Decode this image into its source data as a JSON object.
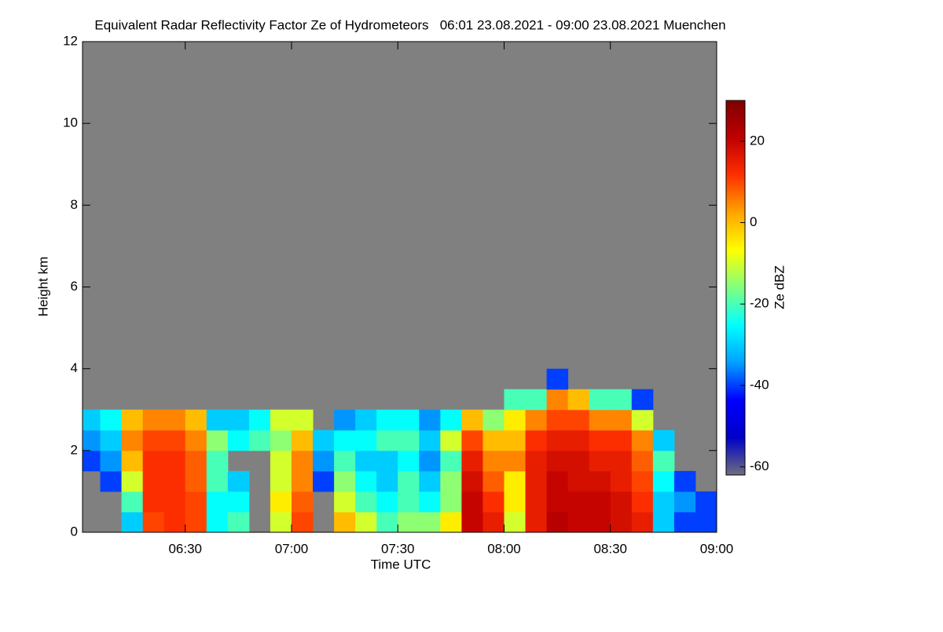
{
  "chart_data": {
    "type": "heatmap",
    "title": "Equivalent Radar Reflectivity Factor Ze of Hydrometeors   06:01 23.08.2021 - 09:00 23.08.2021 Muenchen",
    "x_label": "Time UTC",
    "y_label": "Height km",
    "colorbar_label": "Ze dBZ",
    "xlim": [
      361,
      540
    ],
    "xticks": [
      {
        "value": 390,
        "label": "06:30"
      },
      {
        "value": 420,
        "label": "07:00"
      },
      {
        "value": 450,
        "label": "07:30"
      },
      {
        "value": 480,
        "label": "08:00"
      },
      {
        "value": 510,
        "label": "08:30"
      },
      {
        "value": 540,
        "label": "09:00"
      }
    ],
    "ylim": [
      0,
      12
    ],
    "yticks": [
      0,
      2,
      4,
      6,
      8,
      10,
      12
    ],
    "clim": [
      -62,
      30
    ],
    "cticks": [
      -60,
      -40,
      -20,
      0,
      20
    ],
    "background": "#808080",
    "colormap": [
      "#6e6e80",
      "#0000c8",
      "#0000ff",
      "#00a0ff",
      "#00ffff",
      "#80ff80",
      "#ffff00",
      "#ffa500",
      "#ff3000",
      "#c00000",
      "#7f0000"
    ],
    "x": [
      363,
      369,
      375,
      381,
      387,
      393,
      399,
      405,
      411,
      417,
      423,
      429,
      435,
      441,
      447,
      453,
      459,
      465,
      471,
      477,
      483,
      489,
      495,
      501,
      507,
      513,
      519,
      525,
      531,
      537
    ],
    "y": [
      0.25,
      0.75,
      1.25,
      1.75,
      2.25,
      2.75,
      3.25,
      3.75
    ],
    "z": [
      [
        null,
        null,
        -30,
        10,
        12,
        10,
        -25,
        -20,
        null,
        -10,
        10,
        null,
        0,
        -10,
        -20,
        -15,
        -15,
        -5,
        20,
        15,
        -10,
        15,
        22,
        20,
        20,
        18,
        15,
        -30,
        -40,
        -40
      ],
      [
        null,
        null,
        -20,
        12,
        12,
        10,
        -25,
        -25,
        null,
        -5,
        8,
        null,
        -10,
        -20,
        -25,
        -20,
        -25,
        -15,
        20,
        12,
        -5,
        15,
        20,
        20,
        20,
        18,
        12,
        -30,
        -35,
        -40
      ],
      [
        null,
        -40,
        -10,
        12,
        12,
        8,
        -20,
        -30,
        null,
        -10,
        5,
        -40,
        -15,
        -25,
        -30,
        -20,
        -30,
        -15,
        18,
        8,
        -5,
        15,
        20,
        18,
        18,
        15,
        10,
        -25,
        -40,
        null
      ],
      [
        -40,
        -35,
        0,
        12,
        12,
        8,
        -20,
        null,
        null,
        -10,
        5,
        -35,
        -20,
        -30,
        -30,
        -25,
        -35,
        -20,
        15,
        5,
        5,
        15,
        18,
        18,
        15,
        15,
        8,
        -20,
        null,
        null
      ],
      [
        -35,
        -30,
        5,
        10,
        10,
        5,
        -15,
        -25,
        -20,
        -15,
        0,
        -30,
        -25,
        -25,
        -20,
        -20,
        -30,
        -10,
        10,
        0,
        0,
        12,
        15,
        15,
        12,
        12,
        5,
        -30,
        null,
        null
      ],
      [
        -30,
        -25,
        0,
        5,
        5,
        0,
        -30,
        -30,
        -25,
        -10,
        -10,
        null,
        -35,
        -30,
        -25,
        -25,
        -35,
        -25,
        0,
        -15,
        -5,
        5,
        10,
        10,
        5,
        5,
        -10,
        null,
        null,
        null
      ],
      [
        null,
        null,
        null,
        null,
        null,
        null,
        null,
        null,
        null,
        null,
        null,
        null,
        null,
        null,
        null,
        null,
        null,
        null,
        null,
        null,
        -20,
        -20,
        5,
        0,
        -20,
        -20,
        -40,
        null,
        null,
        null
      ],
      [
        null,
        null,
        null,
        null,
        null,
        null,
        null,
        null,
        null,
        null,
        null,
        null,
        null,
        null,
        null,
        null,
        null,
        null,
        null,
        null,
        null,
        null,
        -40,
        null,
        null,
        null,
        null,
        null,
        null,
        null
      ]
    ]
  }
}
